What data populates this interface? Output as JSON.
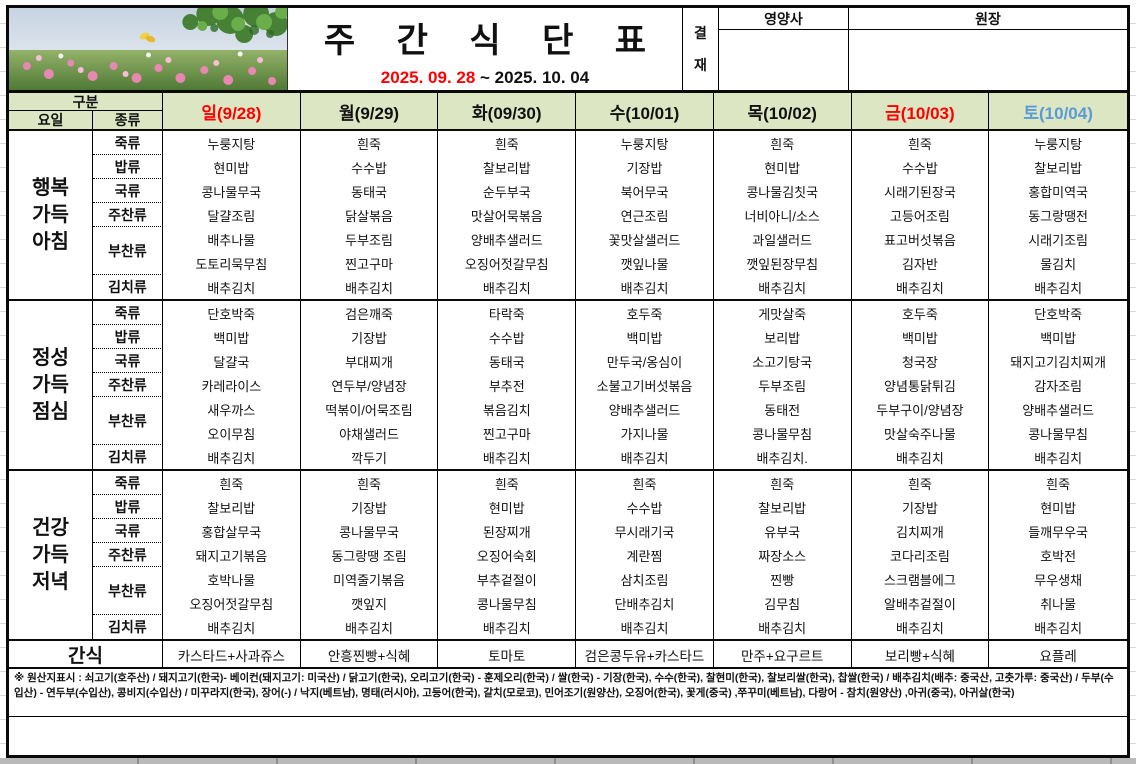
{
  "header": {
    "title": "주  간  식  단  표",
    "date_start": "2025. 09. 28",
    "date_end": " ~ 2025. 10. 04",
    "approval_top": "결",
    "approval_bottom": "재",
    "sign_columns": [
      "영양사",
      "원장"
    ],
    "photo_icon": "cosmos-flower-field-photo"
  },
  "colors": {
    "header_green": "#dce6c3",
    "sunday_red": "#ff0000",
    "weekday_black": "#111111",
    "saturday_blue": "#5b9bd5"
  },
  "day_header": {
    "gubun": "구분",
    "yoil": "요일",
    "jongryu": "종류",
    "days": [
      {
        "label": "일(9/28)",
        "color": "#ff0000"
      },
      {
        "label": "월(9/29)",
        "color": "#111111"
      },
      {
        "label": "화(09/30)",
        "color": "#111111"
      },
      {
        "label": "수(10/01)",
        "color": "#111111"
      },
      {
        "label": "목(10/02)",
        "color": "#111111"
      },
      {
        "label": "금(10/03)",
        "color": "#ff0000"
      },
      {
        "label": "토(10/04)",
        "color": "#5b9bd5"
      }
    ]
  },
  "menu": {
    "sections": [
      {
        "name": "행복\n가득\n아침",
        "rows": [
          {
            "type": "죽류",
            "cells": [
              "누룽지탕",
              "흰죽",
              "흰죽",
              "누룽지탕",
              "흰죽",
              "흰죽",
              "누룽지탕"
            ]
          },
          {
            "type": "밥류",
            "cells": [
              "현미밥",
              "수수밥",
              "찰보리밥",
              "기장밥",
              "현미밥",
              "수수밥",
              "찰보리밥"
            ]
          },
          {
            "type": "국류",
            "cells": [
              "콩나물무국",
              "동태국",
              "순두부국",
              "북어무국",
              "콩나물김칫국",
              "시래기된장국",
              "홍합미역국"
            ]
          },
          {
            "type": "주찬류",
            "cells": [
              "달걀조림",
              "닭살볶음",
              "맛살어묵볶음",
              "연근조림",
              "너비아니/소스",
              "고등어조림",
              "동그랑땡전"
            ]
          },
          {
            "type": "부찬류",
            "span": 2,
            "cells": [
              "배추나물",
              "두부조림",
              "양배추샐러드",
              "꽃맛살샐러드",
              "과일샐러드",
              "표고버섯볶음",
              "시래기조림"
            ]
          },
          {
            "type": null,
            "cells": [
              "도토리묵무침",
              "찐고구마",
              "오징어젓갈무침",
              "깻잎나물",
              "깻잎된장무침",
              "김자반",
              "물김치"
            ]
          },
          {
            "type": "김치류",
            "cells": [
              "배추김치",
              "배추김치",
              "배추김치",
              "배추김치",
              "배추김치",
              "배추김치",
              "배추김치"
            ]
          }
        ]
      },
      {
        "name": "정성\n가득\n점심",
        "rows": [
          {
            "type": "죽류",
            "cells": [
              "단호박죽",
              "검은깨죽",
              "타락죽",
              "호두죽",
              "게맛살죽",
              "호두죽",
              "단호박죽"
            ]
          },
          {
            "type": "밥류",
            "cells": [
              "백미밥",
              "기장밥",
              "수수밥",
              "백미밥",
              "보리밥",
              "백미밥",
              "백미밥"
            ]
          },
          {
            "type": "국류",
            "cells": [
              "달걀국",
              "부대찌개",
              "동태국",
              "만두국/옹심이",
              "소고기탕국",
              "청국장",
              "돼지고기김치찌개"
            ]
          },
          {
            "type": "주찬류",
            "cells": [
              "카레라이스",
              "연두부/양념장",
              "부추전",
              "소불고기버섯볶음",
              "두부조림",
              "양념통닭튀김",
              "감자조림"
            ]
          },
          {
            "type": "부찬류",
            "span": 2,
            "cells": [
              "새우까스",
              "떡볶이/어묵조림",
              "볶음김치",
              "양배추샐러드",
              "동태전",
              "두부구이/양념장",
              "양배추샐러드"
            ]
          },
          {
            "type": null,
            "cells": [
              "오이무침",
              "야채샐러드",
              "찐고구마",
              "가지나물",
              "콩나물무침",
              "맛살숙주나물",
              "콩나물무침"
            ]
          },
          {
            "type": "김치류",
            "cells": [
              "배추김치",
              "깍두기",
              "배추김치",
              "배추김치",
              "배추김치.",
              "배추김치",
              "배추김치"
            ]
          }
        ]
      },
      {
        "name": "건강\n가득\n저녁",
        "rows": [
          {
            "type": "죽류",
            "cells": [
              "흰죽",
              "흰죽",
              "흰죽",
              "흰죽",
              "흰죽",
              "흰죽",
              "흰죽"
            ]
          },
          {
            "type": "밥류",
            "cells": [
              "찰보리밥",
              "기장밥",
              "현미밥",
              "수수밥",
              "찰보리밥",
              "기장밥",
              "현미밥"
            ]
          },
          {
            "type": "국류",
            "cells": [
              "홍합살무국",
              "콩나물무국",
              "된장찌개",
              "무시래기국",
              "유부국",
              "김치찌개",
              "들깨무우국"
            ]
          },
          {
            "type": "주찬류",
            "cells": [
              "돼지고기볶음",
              "동그랑땡 조림",
              "오징어숙회",
              "계란찜",
              "짜장소스",
              "코다리조림",
              "호박전"
            ]
          },
          {
            "type": "부찬류",
            "span": 2,
            "cells": [
              "호박나물",
              "미역줄기볶음",
              "부추겉절이",
              "삼치조림",
              "찐빵",
              "스크램블에그",
              "무우생채"
            ]
          },
          {
            "type": null,
            "cells": [
              "오징어젓갈무침",
              "깻잎지",
              "콩나물무침",
              "단배추김치",
              "김무침",
              "알배추겉절이",
              "취나물"
            ]
          },
          {
            "type": "김치류",
            "cells": [
              "배추김치",
              "배추김치",
              "배추김치",
              "배추김치",
              "배추김치",
              "배추김치",
              "배추김치"
            ]
          }
        ]
      }
    ],
    "snack": {
      "label": "간식",
      "items": [
        "카스타드+사과쥬스",
        "안흥찐빵+식혜",
        "토마토",
        "검은콩두유+카스타드",
        "만주+요구르트",
        "보리빵+식혜",
        "요플레"
      ]
    }
  },
  "footnote": "※ 원산지표시 : 쇠고기(호주산) / 돼지고기(한국)- 베이컨(돼지고기: 미국산) / 닭고기(한국), 오리고기(한국) - 훈제오리(한국) / 쌀(한국) - 기장(한국), 수수(한국), 찰현미(한국), 찰보리쌀(한국), 찹쌀(한국) / 배추김치(배추: 중국산, 고춧가루: 중국산) / 두부(수입산) - 연두부(수입산), 콩비지(수입산) / 미꾸라지(한국), 장어(-) / 낙지(베트남), 명태(러시아), 고등어(한국), 갈치(모로코), 민어조기(원양산), 오징어(한국), 꽃게(중국) ,쭈꾸미(베트남), 다랑어 - 참치(원양산) ,아귀(중국), 아귀살(한국)"
}
